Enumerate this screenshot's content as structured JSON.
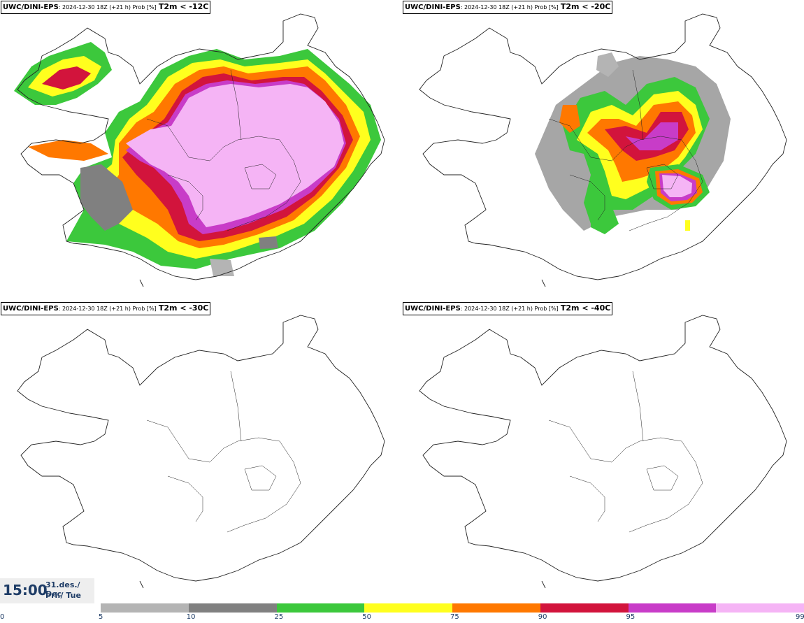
{
  "panels": [
    {
      "model": "UWC/DINI-EPS",
      "run": ": 2024-12-30 18Z (+21 h) Prob [%]",
      "threshold": "T2m < -12C"
    },
    {
      "model": "UWC/DINI-EPS",
      "run": ": 2024-12-30 18Z (+21 h) Prob [%]",
      "threshold": "T2m < -20C"
    },
    {
      "model": "UWC/DINI-EPS",
      "run": ": 2024-12-30 18Z (+21 h) Prob [%]",
      "threshold": "T2m < -30C"
    },
    {
      "model": "UWC/DINI-EPS",
      "run": ": 2024-12-30 18Z (+21 h) Prob [%]",
      "threshold": "T2m < -40C"
    }
  ],
  "valid_time": {
    "time": "15:00",
    "date": "31.des./ Dec",
    "weekday": "Þri./ Tue"
  },
  "legend": {
    "ticks": [
      "0",
      "5",
      "10",
      "25",
      "50",
      "75",
      "90",
      "95",
      "99"
    ],
    "colors": [
      "#b4b4b4",
      "#808080",
      "#3cc83c",
      "#ffff1e",
      "#ff7800",
      "#d2143c",
      "#c83cc8",
      "#f5b4f5"
    ]
  },
  "map_colors": {
    "coast": "#222222",
    "pink_light": "#f5b4f5",
    "magenta": "#c83cc8",
    "red": "#d2143c",
    "orange": "#ff7800",
    "yellow": "#ffff1e",
    "green": "#3cc83c",
    "gray_dark": "#808080",
    "gray_light": "#b4b4b4"
  }
}
